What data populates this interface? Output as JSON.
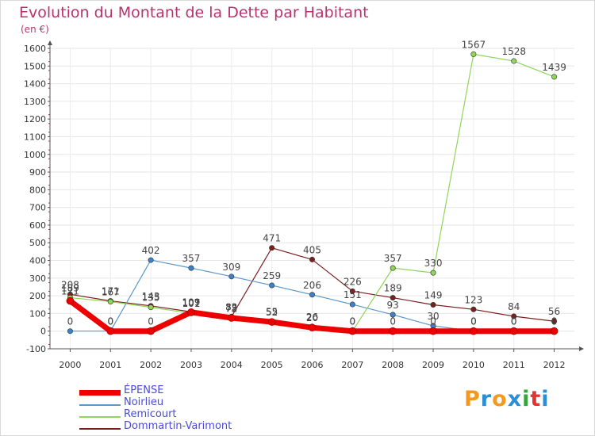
{
  "title": "Evolution du Montant de la Dette par Habitant",
  "unit": "(en €)",
  "logo": {
    "text": "Proxiti",
    "colors": [
      "#f29a1f",
      "#2a8fd6",
      "#f29a1f",
      "#2a8fd6",
      "#35a63c",
      "#e3342f",
      "#2a8fd6"
    ]
  },
  "chart_data": {
    "type": "line",
    "x": [
      "2000",
      "2001",
      "2002",
      "2003",
      "2004",
      "2005",
      "2006",
      "2007",
      "2008",
      "2009",
      "2010",
      "2011",
      "2012"
    ],
    "ylim": [
      -100,
      1600
    ],
    "yticks": [
      -100,
      0,
      100,
      200,
      300,
      400,
      500,
      600,
      700,
      800,
      900,
      1000,
      1100,
      1200,
      1300,
      1400,
      1500,
      1600
    ],
    "grid": true,
    "legend": "bottom-left",
    "series": [
      {
        "name": "Dommartin-Varimont",
        "color": "#7a1f1f",
        "marker": "#7a1f1f",
        "width": 1.2,
        "values": [
          208,
          171,
          143,
          109,
          82,
          471,
          405,
          226,
          189,
          149,
          123,
          84,
          56
        ]
      },
      {
        "name": "Noirlieu",
        "color": "#5b98c9",
        "marker": "#3b82c9",
        "width": 1.2,
        "values": [
          0,
          0,
          402,
          357,
          309,
          259,
          206,
          151,
          93,
          30,
          0,
          0,
          0
        ]
      },
      {
        "name": "Remicourt",
        "color": "#8fd65a",
        "marker": "#8fd65a",
        "width": 1.2,
        "values": [
          189,
          167,
          135,
          101,
          72,
          55,
          26,
          0,
          357,
          330,
          1567,
          1528,
          1439
        ]
      },
      {
        "name": "ÉPENSE",
        "color": "#ee0000",
        "marker": "#ee0000",
        "width": 7,
        "values": [
          171,
          0,
          0,
          107,
          75,
          52,
          20,
          0,
          0,
          0,
          0,
          0,
          0
        ]
      }
    ],
    "data_labels": [
      {
        "series": "Dommartin-Varimont",
        "labels": [
          "208",
          "171",
          "143",
          "109",
          "82",
          "471",
          "405",
          "226",
          "189",
          "149",
          "123",
          "84",
          "56"
        ]
      },
      {
        "series": "Noirlieu",
        "labels": [
          "0",
          "0",
          "402",
          "357",
          "309",
          "259",
          "206",
          "151",
          "93",
          "30",
          "0",
          "0",
          "0"
        ]
      },
      {
        "series": "Remicourt",
        "labels": [
          "189",
          "167",
          "135",
          "101",
          "72",
          "55",
          "26",
          "0",
          "357",
          "330",
          "1567",
          "1528",
          "1439"
        ]
      },
      {
        "series": "ÉPENSE",
        "labels": [
          "171",
          "0",
          "0",
          "107",
          "75",
          "52",
          "20",
          "0",
          "0",
          "0",
          "0",
          "0",
          "0"
        ]
      }
    ]
  },
  "legend": [
    {
      "label": "ÉPENSE",
      "color": "#ee0000",
      "width": 7
    },
    {
      "label": "Noirlieu",
      "color": "#5b98c9",
      "width": 2
    },
    {
      "label": "Remicourt",
      "color": "#8fd65a",
      "width": 2
    },
    {
      "label": "Dommartin-Varimont",
      "color": "#7a1f1f",
      "width": 2
    }
  ]
}
